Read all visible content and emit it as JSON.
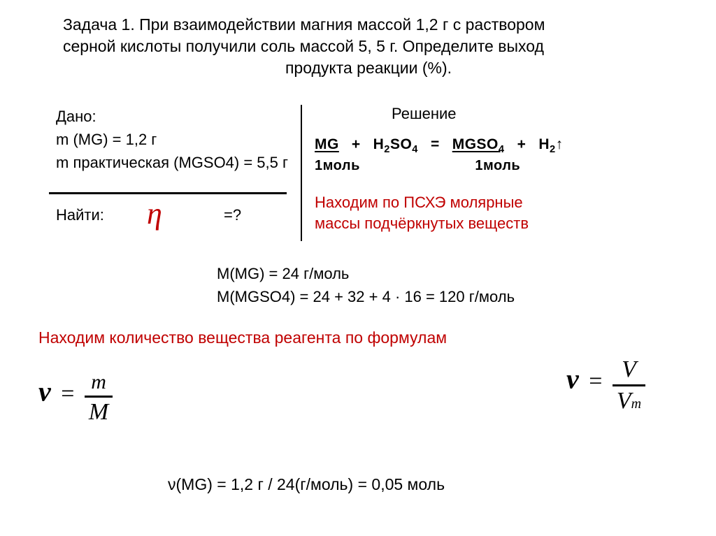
{
  "problem": {
    "title_l1": "Задача 1. При взаимодействии магния массой 1,2 г с раствором",
    "title_l2": "серной кислоты получили соль массой 5, 5 г. Определите выход",
    "title_l3": "продукта реакции (%)."
  },
  "given": {
    "label": "Дано:",
    "line1": "m (MG) = 1,2 г",
    "line2": "m практическая (MGSO4) = 5,5 г"
  },
  "find": {
    "label": "Найти:",
    "symbol": "η",
    "eq": "=?"
  },
  "solution": {
    "label": "Решение"
  },
  "equation": {
    "mg": "MG",
    "plus": "+",
    "h2so4_a": "H",
    "h2so4_b": "2",
    "h2so4_c": "SO",
    "h2so4_d": "4",
    "eq": "=",
    "mgso4_a": "MGSO",
    "mgso4_b": "4",
    "h2_a": "H",
    "h2_b": "2",
    "arrow": "↑",
    "mole1": "1моль",
    "mole2": "1моль"
  },
  "note1": {
    "l1": "Находим по ПСХЭ молярные",
    "l2": "массы подчёркнутых веществ"
  },
  "molar": {
    "l1": "М(MG) = 24 г/моль",
    "l2": "М(MGSO4) = 24 + 32 + 4 · 16 = 120 г/моль"
  },
  "note2": "Находим количество вещества реагента по формулам",
  "formula1": {
    "nu": "ν",
    "eq": "=",
    "num": "m",
    "den": "M"
  },
  "formula2": {
    "nu": "ν",
    "eq": "=",
    "num": "V",
    "den_a": "V",
    "den_b": "m"
  },
  "calc": "ν(MG) = 1,2 г / 24(г/моль) = 0,05 моль",
  "colors": {
    "text": "#000000",
    "accent": "#c00000",
    "background": "#ffffff"
  }
}
